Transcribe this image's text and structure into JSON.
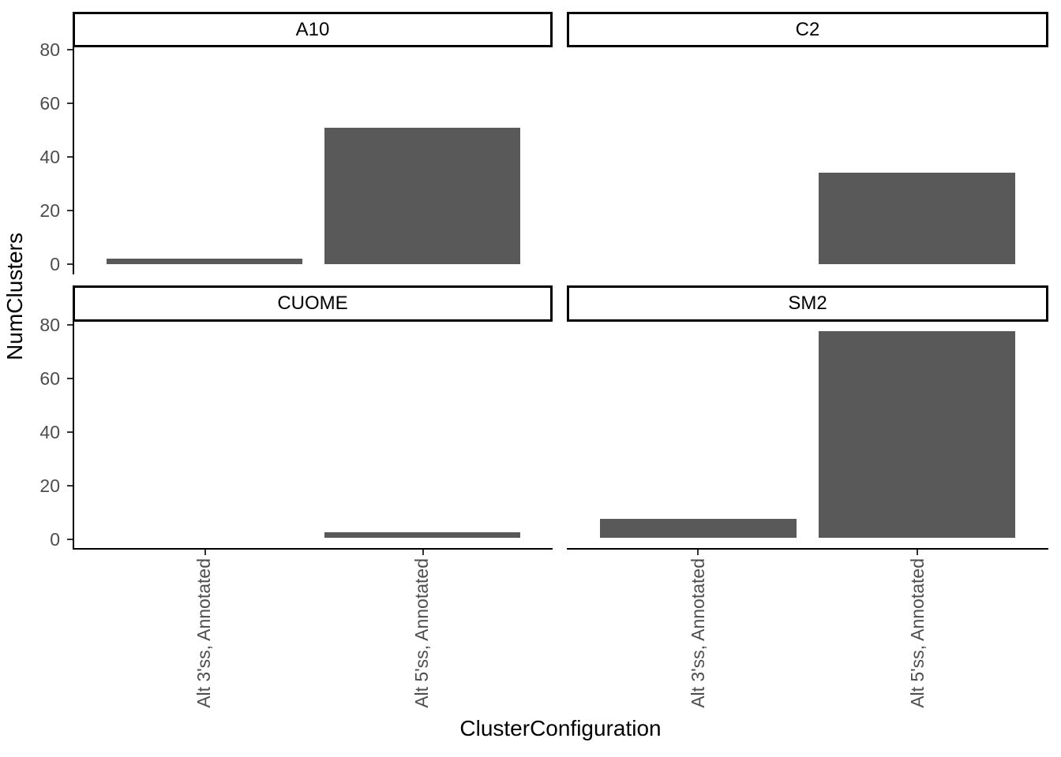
{
  "figure": {
    "ylabel": "NumClusters",
    "xlabel": "ClusterConfiguration",
    "y_ticks": [
      0,
      20,
      40,
      60,
      80
    ],
    "x_categories": [
      "Alt 3'ss, Annotated",
      "Alt 5'ss, Annotated"
    ],
    "bar_color": "#595959",
    "axis_text_color": "#4d4d4d",
    "axis_line_color": "#000000",
    "tick_mark_color": "#333333",
    "strip_border_color": "#000000",
    "strip_background": "#ffffff"
  },
  "chart_data": {
    "type": "bar",
    "title": "",
    "xlabel": "ClusterConfiguration",
    "ylabel": "NumClusters",
    "categories": [
      "Alt 3'ss, Annotated",
      "Alt 5'ss, Annotated"
    ],
    "y_ticks": [
      0,
      20,
      40,
      60,
      80
    ],
    "ylim": [
      0,
      81
    ],
    "grid": false,
    "legend": "none",
    "facet_layout": "2x2",
    "facets": [
      {
        "name": "A10",
        "values": [
          2,
          51
        ]
      },
      {
        "name": "C2",
        "values": [
          0,
          34
        ]
      },
      {
        "name": "CUOME",
        "values": [
          0,
          2
        ]
      },
      {
        "name": "SM2",
        "values": [
          7,
          77
        ]
      }
    ]
  }
}
